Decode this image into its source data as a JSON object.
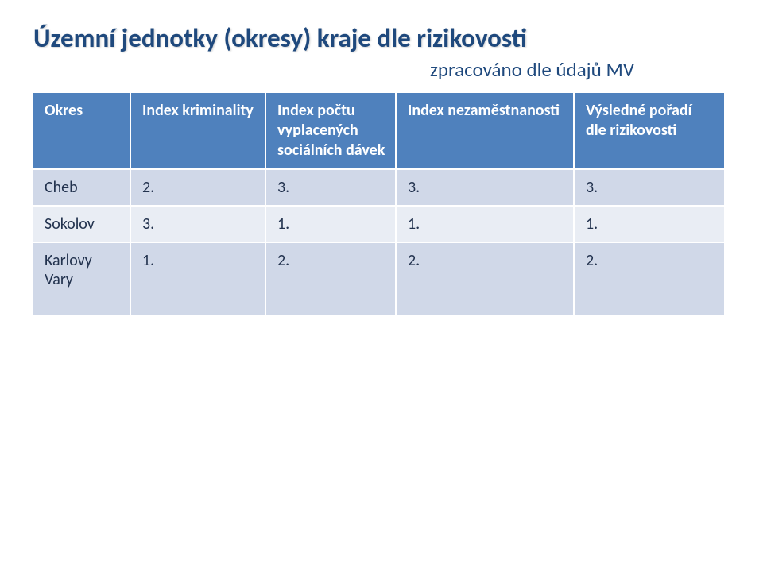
{
  "title": "Územní jednotky (okresy) kraje dle rizikovosti",
  "subtitle": "zpracováno dle údajů MV",
  "table": {
    "columns": [
      "Okres",
      "Index kriminality",
      "Index počtu vyplacených sociálních dávek",
      "Index nezaměstnanosti",
      "Výsledné pořadí dle rizikovosti"
    ],
    "rows": [
      [
        "Cheb",
        "2.",
        "3.",
        "3.",
        "3."
      ],
      [
        "Sokolov",
        "3.",
        "1.",
        "1.",
        "1."
      ],
      [
        "Karlovy Vary",
        "1.",
        "2.",
        "2.",
        "2."
      ]
    ]
  }
}
